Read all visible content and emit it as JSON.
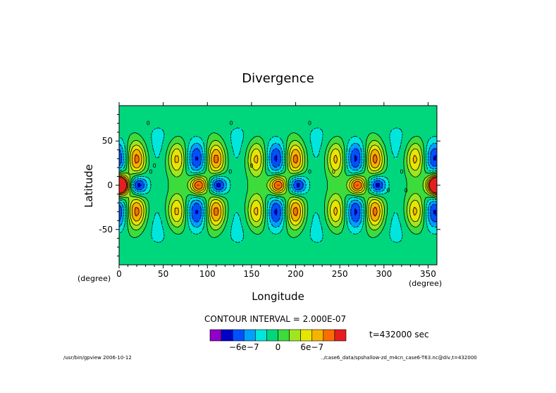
{
  "chart_data": {
    "type": "heatmap",
    "title": "Divergence",
    "xlabel": "Longitude",
    "ylabel": "Latitude",
    "x_unit": "(degree)",
    "y_unit": "(degree)",
    "xlim": [
      0,
      360
    ],
    "ylim": [
      -90,
      90
    ],
    "xticks": [
      0,
      50,
      100,
      150,
      200,
      250,
      300,
      350
    ],
    "yticks": [
      50,
      0,
      -50
    ],
    "zonal_wavenumber": 4,
    "features": [
      {
        "type": "equatorial maximum",
        "lon": [
          0,
          90,
          180,
          270,
          360
        ],
        "lat": 0,
        "value": 1.2e-06
      },
      {
        "type": "equatorial minimum",
        "lon": [
          22,
          112,
          202,
          292
        ],
        "lat": 0,
        "value": -1e-06
      },
      {
        "type": "midlatitude maximum",
        "lon": [
          20,
          110,
          200,
          290
        ],
        "lat": [
          30,
          -30
        ],
        "value": 1e-06
      },
      {
        "type": "midlatitude maximum",
        "lon": [
          65,
          155,
          245,
          335
        ],
        "lat": [
          30,
          -30
        ],
        "value": 8e-07
      },
      {
        "type": "midlatitude minimum",
        "lon": [
          88,
          178,
          268,
          358
        ],
        "lat": [
          30,
          -30
        ],
        "value": -8e-07
      }
    ],
    "contour_interval_label": "CONTOUR INTERVAL = 2.000E-07",
    "contour_interval": 2e-07,
    "colorbar": {
      "levels": [
        -1.2e-06,
        -1e-06,
        -8e-07,
        -6e-07,
        -4e-07,
        -2e-07,
        0,
        2e-07,
        4e-07,
        6e-07,
        8e-07,
        1e-06,
        1.2e-06
      ],
      "colors": [
        "#8f00c8",
        "#0000c8",
        "#0050ff",
        "#00a0ff",
        "#00e6dc",
        "#00d77d",
        "#3cdc3c",
        "#a0e61e",
        "#e6e600",
        "#f5b400",
        "#fa6e00",
        "#e61e1e"
      ],
      "tick_labels": [
        "−6e−7",
        "0",
        "6e−7"
      ],
      "tick_values": [
        -6e-07,
        0,
        6e-07
      ]
    },
    "time_label": "t=432000 sec",
    "contour_labels": [
      "0",
      "0",
      "0",
      "0",
      "0",
      "0",
      "0",
      "0",
      "0",
      "0",
      "0",
      "0"
    ]
  },
  "footer": {
    "left": "/usr/bin/gpview  2006-10-12",
    "right": "../case6_data/spshallow-zd_m4cn_case6-T63.nc@div,t=432000"
  }
}
